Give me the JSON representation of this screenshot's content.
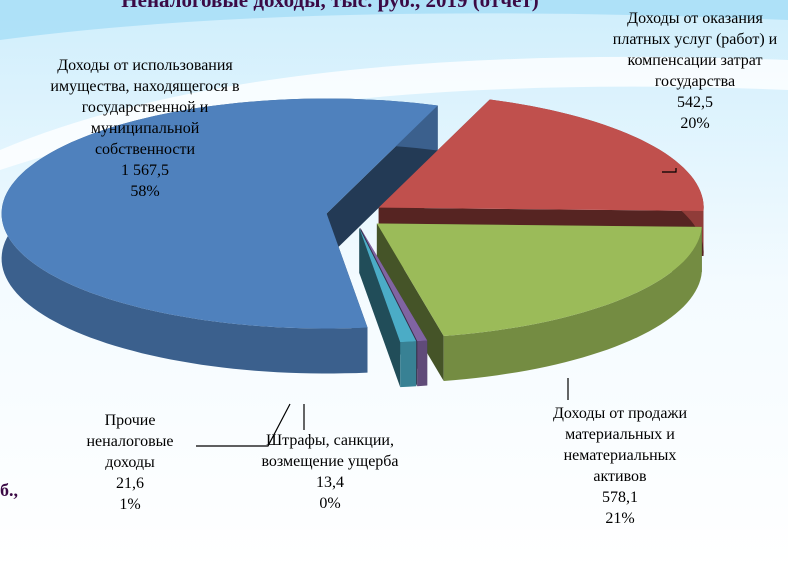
{
  "fragment": "б.,",
  "chart_data": {
    "type": "pie",
    "title": "Неналоговые доходы, тыс. руб., 2019 (отчет)",
    "categories": [
      "Доходы от оказания платных услуг (работ)  и компенсации затрат государства",
      "Доходы от продажи материальных и нематериальных активов",
      "Штрафы, санкции, возмещение ущерба",
      "Прочие неналоговые доходы",
      "Доходы от использования имущества, находящегося в государственной и муниципальной собственности"
    ],
    "values": [
      542.5,
      578.1,
      13.4,
      21.6,
      1567.5
    ],
    "value_labels": [
      "542,5",
      "578,1",
      "13,4",
      "21,6",
      "1 567,5"
    ],
    "percent_labels": [
      "20%",
      "21%",
      "0%",
      "1%",
      "58%"
    ],
    "colors": [
      "#c0504d",
      "#9bbb59",
      "#8064a2",
      "#4bacc6",
      "#4f81bd"
    ]
  }
}
